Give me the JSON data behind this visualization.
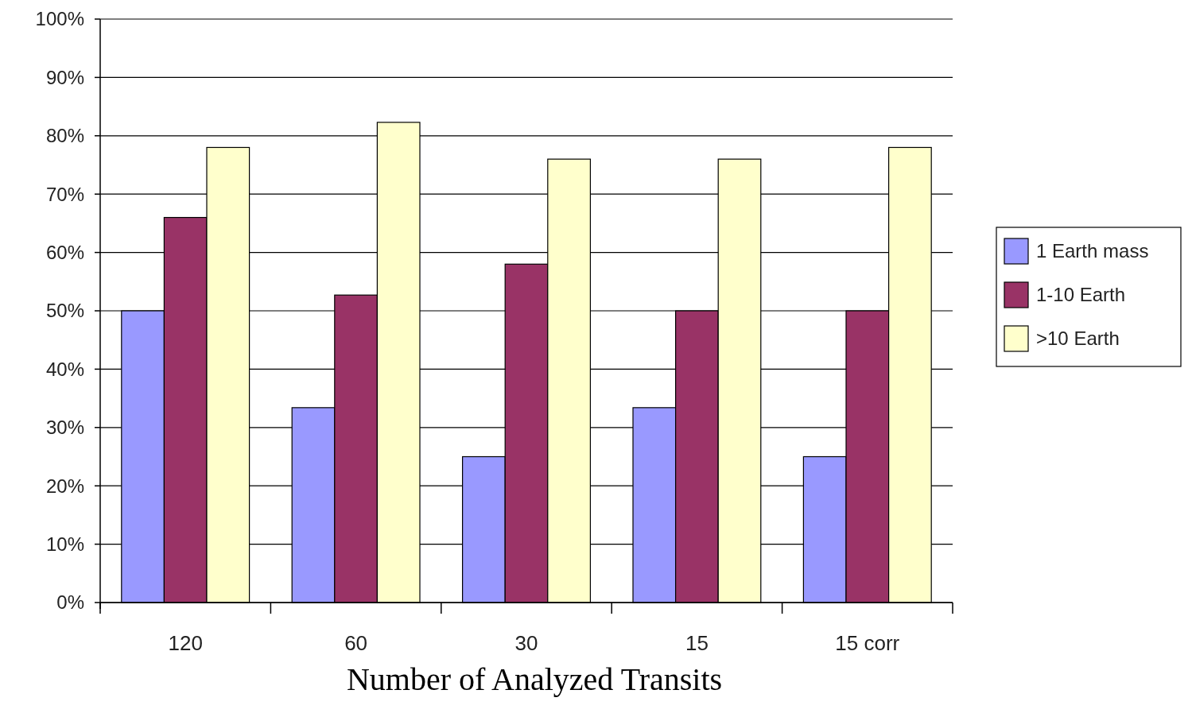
{
  "chart_data": {
    "type": "bar",
    "xlabel": "Number of Analyzed Transits",
    "categories": [
      "120",
      "60",
      "30",
      "15",
      "15 corr"
    ],
    "series": [
      {
        "name": "1 Earth mass",
        "color": "#9999ff",
        "values": [
          50,
          33.4,
          25,
          33.4,
          25
        ]
      },
      {
        "name": "1-10 Earth",
        "color": "#993366",
        "values": [
          66,
          52.7,
          58,
          50,
          50
        ]
      },
      {
        "name": ">10 Earth",
        "color": "#ffffcc",
        "values": [
          78,
          82.3,
          76,
          76,
          78
        ]
      }
    ],
    "ylim": [
      0,
      100
    ],
    "yticks": [
      {
        "value": 0,
        "label": "0%"
      },
      {
        "value": 10,
        "label": "10%"
      },
      {
        "value": 20,
        "label": "20%"
      },
      {
        "value": 30,
        "label": "30%"
      },
      {
        "value": 40,
        "label": "40%"
      },
      {
        "value": 50,
        "label": "50%"
      },
      {
        "value": 60,
        "label": "60%"
      },
      {
        "value": 70,
        "label": "70%"
      },
      {
        "value": 80,
        "label": "80%"
      },
      {
        "value": 90,
        "label": "90%"
      },
      {
        "value": 100,
        "label": "100%"
      }
    ],
    "grid": "y",
    "legend": "right"
  }
}
